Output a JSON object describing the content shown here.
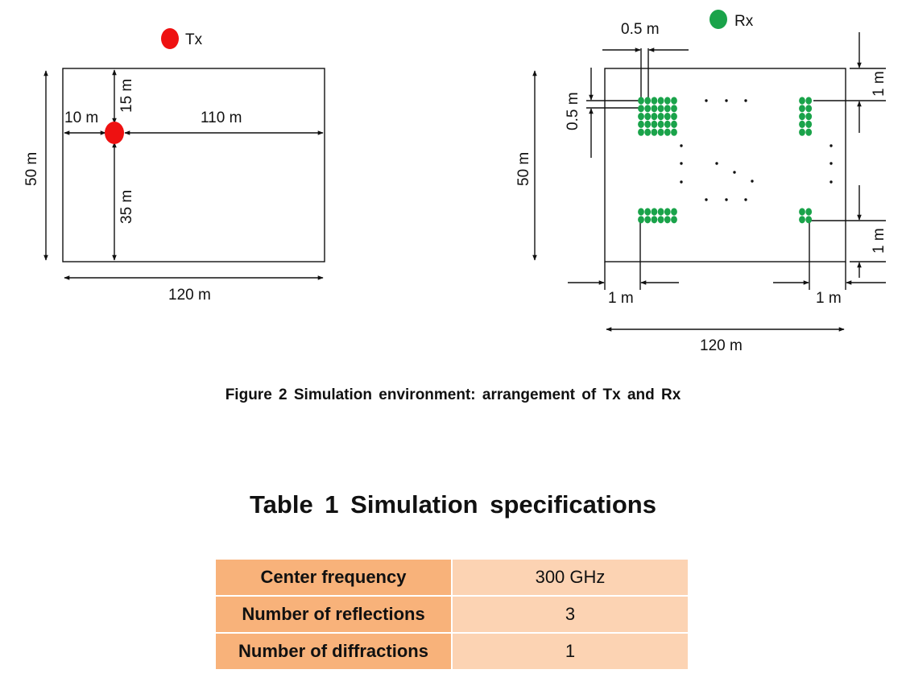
{
  "diagram": {
    "tx_label": "Tx",
    "rx_label": "Rx",
    "colors": {
      "tx": "#ee1111",
      "rx": "#1aa34a",
      "line": "#111111"
    },
    "left": {
      "height_label": "50 m",
      "width_label": "120 m",
      "dist_left_label": "10 m",
      "dist_right_label": "110 m",
      "dist_top_label": "15 m",
      "dist_bottom_label": "35 m"
    },
    "right": {
      "spacing_h_label": "0.5 m",
      "spacing_v_label": "0.5 m",
      "height_label": "50 m",
      "width_label": "120 m",
      "margin_top_label": "1 m",
      "margin_bottom_label": "1 m",
      "margin_left_label": "1 m",
      "margin_right_label": "1 m"
    }
  },
  "figure_caption": "Figure 2  Simulation environment: arrangement of Tx and Rx",
  "table": {
    "title": "Table 1  Simulation specifications",
    "rows": [
      {
        "label": "Center frequency",
        "value": "300 GHz"
      },
      {
        "label": "Number of reflections",
        "value": "3"
      },
      {
        "label": "Number of diffractions",
        "value": "1"
      }
    ]
  }
}
